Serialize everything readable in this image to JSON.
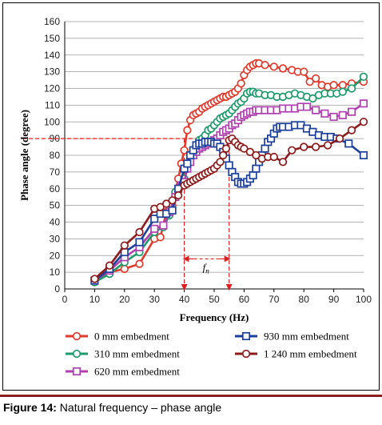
{
  "caption": {
    "label": "Figure 14:",
    "text": " Natural frequency – phase angle"
  },
  "chart_data": {
    "type": "line",
    "xlabel": "Frequency (Hz)",
    "ylabel": "Phase angle (degree)",
    "xlim": [
      0,
      100
    ],
    "ylim": [
      0,
      160
    ],
    "xticks": [
      0,
      10,
      20,
      30,
      40,
      50,
      60,
      70,
      80,
      90,
      100
    ],
    "yticks": [
      0,
      10,
      20,
      30,
      40,
      50,
      60,
      70,
      80,
      90,
      100,
      110,
      120,
      130,
      140,
      150,
      160
    ],
    "grid": "horizontal",
    "legend_position": "bottom",
    "series": [
      {
        "name": "0 mm embedment",
        "color": "#e03a2c",
        "marker": "circle",
        "x": [
          10,
          15,
          20,
          25,
          30,
          32,
          34,
          36,
          38,
          39,
          40,
          41,
          42,
          43,
          44,
          45,
          46,
          47,
          48,
          49,
          50,
          51,
          52,
          53,
          54,
          55,
          56,
          57,
          58,
          59,
          60,
          61,
          62,
          63,
          64,
          65,
          67,
          70,
          73,
          76,
          78,
          80,
          82,
          84,
          86,
          88,
          90,
          93,
          96,
          100
        ],
        "y": [
          5,
          10,
          12,
          15,
          30,
          31,
          46,
          50,
          66,
          75,
          83,
          95,
          101,
          104,
          105,
          106,
          108,
          109,
          110,
          111,
          112,
          113,
          114,
          115,
          115,
          116,
          117,
          118,
          120,
          123,
          128,
          131,
          133,
          134,
          135,
          135,
          134,
          133,
          132,
          131,
          130,
          130,
          124,
          126,
          122,
          121,
          122,
          122,
          123,
          124
        ]
      },
      {
        "name": "310 mm embedment",
        "color": "#1f9a6b",
        "marker": "circle",
        "x": [
          10,
          15,
          20,
          25,
          30,
          33,
          35,
          37,
          39,
          40,
          41,
          42,
          43,
          44,
          45,
          46,
          47,
          48,
          49,
          50,
          51,
          52,
          53,
          54,
          55,
          56,
          57,
          58,
          59,
          60,
          61,
          62,
          63,
          64,
          65,
          67,
          69,
          71,
          73,
          75,
          77,
          79,
          81,
          83,
          85,
          87,
          89,
          91,
          93,
          96,
          100
        ],
        "y": [
          4,
          9,
          16,
          22,
          34,
          37,
          44,
          58,
          62,
          66,
          74,
          80,
          83,
          86,
          89,
          90,
          92,
          95,
          96,
          98,
          100,
          102,
          103,
          104,
          105,
          107,
          109,
          111,
          112,
          114,
          117,
          118,
          118,
          117,
          117,
          116,
          116,
          115,
          115,
          116,
          117,
          116,
          115,
          114,
          116,
          117,
          117,
          117,
          118,
          120,
          127
        ]
      },
      {
        "name": "620 mm embedment",
        "color": "#b03fb0",
        "marker": "square",
        "x": [
          10,
          15,
          20,
          25,
          30,
          33,
          35,
          37,
          39,
          40,
          41,
          42,
          43,
          44,
          45,
          46,
          47,
          48,
          49,
          50,
          51,
          52,
          53,
          54,
          55,
          56,
          57,
          58,
          59,
          60,
          61,
          62,
          63,
          64,
          65,
          67,
          69,
          71,
          73,
          75,
          77,
          79,
          81,
          84,
          87,
          90,
          93,
          96,
          100
        ],
        "y": [
          5,
          11,
          19,
          25,
          36,
          38,
          46,
          55,
          62,
          64,
          72,
          76,
          80,
          82,
          84,
          85,
          86,
          87,
          88,
          89,
          90,
          92,
          94,
          95,
          96,
          98,
          99,
          101,
          103,
          104,
          105,
          106,
          106,
          107,
          107,
          107,
          107,
          107,
          108,
          108,
          108,
          109,
          109,
          107,
          105,
          103,
          104,
          106,
          111
        ]
      },
      {
        "name": "930 mm embedment",
        "color": "#1c3f9c",
        "marker": "square",
        "x": [
          10,
          15,
          20,
          25,
          30,
          32,
          34,
          36,
          38,
          40,
          41,
          42,
          43,
          44,
          45,
          46,
          47,
          48,
          49,
          50,
          51,
          52,
          53,
          54,
          55,
          56,
          57,
          58,
          59,
          60,
          61,
          62,
          63,
          64,
          65,
          66,
          67,
          68,
          69,
          70,
          71,
          72,
          73,
          75,
          77,
          79,
          81,
          83,
          85,
          87,
          89,
          91,
          95,
          100
        ],
        "y": [
          5,
          12,
          22,
          28,
          42,
          45,
          45,
          47,
          60,
          72,
          75,
          80,
          83,
          86,
          87,
          87,
          88,
          88,
          88,
          87,
          87,
          85,
          82,
          78,
          74,
          70,
          67,
          64,
          63,
          63,
          64,
          66,
          68,
          72,
          76,
          80,
          84,
          88,
          90,
          93,
          96,
          97,
          97,
          97,
          98,
          98,
          96,
          94,
          92,
          91,
          91,
          90,
          87,
          80
        ]
      },
      {
        "name": "1 240 mm embedment",
        "color": "#8e1b1b",
        "marker": "circle",
        "x": [
          10,
          15,
          20,
          25,
          30,
          32,
          34,
          36,
          38,
          40,
          41,
          42,
          43,
          44,
          45,
          46,
          47,
          48,
          49,
          50,
          51,
          52,
          53,
          54,
          55,
          56,
          57,
          58,
          59,
          60,
          62,
          64,
          66,
          68,
          70,
          73,
          76,
          80,
          84,
          88,
          92,
          96,
          100
        ],
        "y": [
          6,
          14,
          26,
          34,
          48,
          49,
          51,
          53,
          56,
          62,
          63,
          64,
          65,
          66,
          67,
          68,
          69,
          70,
          71,
          72,
          74,
          76,
          80,
          84,
          89,
          90,
          88,
          86,
          85,
          84,
          82,
          80,
          78,
          79,
          79,
          76,
          83,
          85,
          85,
          86,
          90,
          95,
          100
        ]
      }
    ],
    "annotations": {
      "reference_phase": 90,
      "frequency_marks": [
        40,
        55
      ],
      "interval_label_f": "f",
      "interval_label_sub": "n"
    }
  }
}
